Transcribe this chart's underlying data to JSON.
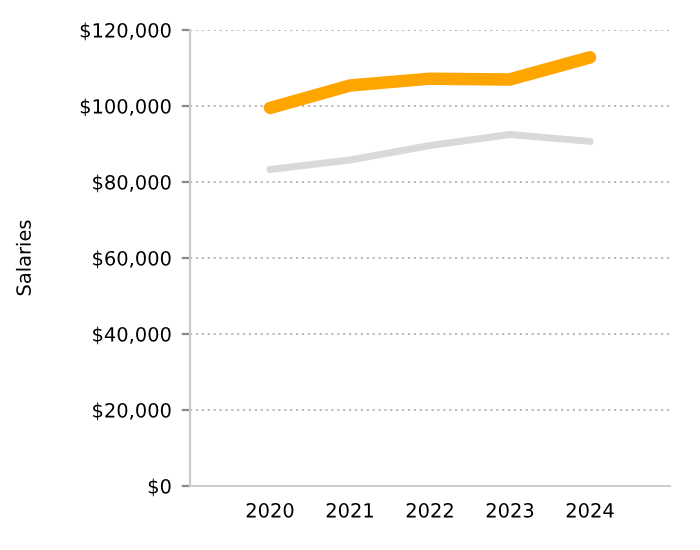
{
  "chart_data": {
    "type": "line",
    "ylabel": "Salaries",
    "categories": [
      "2020",
      "2021",
      "2022",
      "2023",
      "2024"
    ],
    "series": [
      {
        "color": "#ffa500",
        "values": [
          99500,
          105400,
          107200,
          107000,
          112800
        ]
      },
      {
        "color": "#d9d9d9",
        "values": [
          83300,
          85800,
          89600,
          92500,
          90700
        ]
      }
    ],
    "ylim": [
      0,
      120000
    ],
    "yticks": [
      {
        "value": 0,
        "label": "$0"
      },
      {
        "value": 20000,
        "label": "$20,000"
      },
      {
        "value": 40000,
        "label": "$40,000"
      },
      {
        "value": 60000,
        "label": "$60,000"
      },
      {
        "value": 80000,
        "label": "$80,000"
      },
      {
        "value": 100000,
        "label": "$100,000"
      },
      {
        "value": 120000,
        "label": "$120,000"
      }
    ],
    "grid": "y",
    "marker": "none",
    "line_style": "solid",
    "legend": false
  }
}
